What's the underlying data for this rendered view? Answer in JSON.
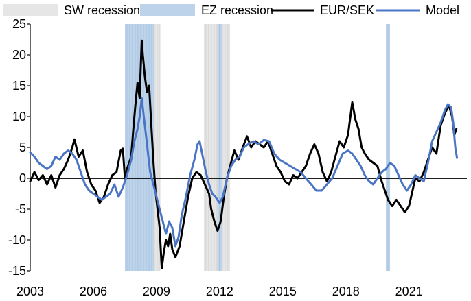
{
  "chart_data": {
    "type": "line",
    "title": "",
    "xlabel": "",
    "ylabel": "",
    "xlim": [
      2003.0,
      2023.75
    ],
    "ylim": [
      -15,
      25
    ],
    "y_ticks": [
      -15,
      -10,
      -5,
      0,
      5,
      10,
      15,
      20,
      25
    ],
    "x_ticks": [
      {
        "value": 2003.0,
        "label": "2003"
      },
      {
        "value": 2006.0,
        "label": "2006"
      },
      {
        "value": 2009.0,
        "label": "2009"
      },
      {
        "value": 2012.0,
        "label": "2012"
      },
      {
        "value": 2015.0,
        "label": "2015"
      },
      {
        "value": 2018.0,
        "label": "2018"
      },
      {
        "value": 2021.0,
        "label": "2021"
      }
    ],
    "grid": false,
    "legend_position": "top",
    "legend": [
      {
        "key": "sw",
        "label": "SW recession",
        "kind": "patch",
        "color": "#e6e6e6"
      },
      {
        "key": "ez",
        "label": "EZ recession",
        "kind": "patch",
        "color": "#bcd3ea"
      },
      {
        "key": "eursek",
        "label": "EUR/SEK",
        "kind": "line",
        "color": "#000000"
      },
      {
        "key": "model",
        "label": "Model",
        "kind": "line",
        "color": "#4a75c4"
      }
    ],
    "shaded_periods": [
      {
        "type": "sw",
        "start": 2007.5,
        "end": 2009.17
      },
      {
        "type": "ez",
        "start": 2007.5,
        "end": 2008.9
      },
      {
        "type": "sw",
        "start": 2011.25,
        "end": 2012.5
      },
      {
        "type": "ez",
        "start": 2011.9,
        "end": 2012.1
      },
      {
        "type": "ez",
        "start": 2019.9,
        "end": 2020.1
      }
    ],
    "series": [
      {
        "name": "EUR/SEK",
        "key": "eursek",
        "color": "#000000",
        "points": [
          [
            2003.0,
            -0.5
          ],
          [
            2003.2,
            1.0
          ],
          [
            2003.4,
            -0.3
          ],
          [
            2003.6,
            0.5
          ],
          [
            2003.8,
            -1.0
          ],
          [
            2004.0,
            0.5
          ],
          [
            2004.2,
            -1.5
          ],
          [
            2004.4,
            0.5
          ],
          [
            2004.6,
            1.5
          ],
          [
            2004.8,
            3.0
          ],
          [
            2005.0,
            5.0
          ],
          [
            2005.1,
            6.3
          ],
          [
            2005.3,
            3.5
          ],
          [
            2005.5,
            4.5
          ],
          [
            2005.7,
            1.0
          ],
          [
            2005.9,
            -1.0
          ],
          [
            2006.1,
            -2.0
          ],
          [
            2006.3,
            -4.0
          ],
          [
            2006.5,
            -3.0
          ],
          [
            2006.7,
            -1.0
          ],
          [
            2006.9,
            0.5
          ],
          [
            2007.1,
            1.0
          ],
          [
            2007.3,
            4.5
          ],
          [
            2007.4,
            4.8
          ],
          [
            2007.5,
            0.0
          ],
          [
            2007.6,
            1.5
          ],
          [
            2007.7,
            2.5
          ],
          [
            2007.8,
            3.5
          ],
          [
            2007.9,
            8.0
          ],
          [
            2008.0,
            12.0
          ],
          [
            2008.1,
            15.5
          ],
          [
            2008.2,
            13.0
          ],
          [
            2008.3,
            22.3
          ],
          [
            2008.35,
            20.0
          ],
          [
            2008.45,
            16.5
          ],
          [
            2008.55,
            14.0
          ],
          [
            2008.65,
            15.0
          ],
          [
            2008.75,
            9.0
          ],
          [
            2008.85,
            3.0
          ],
          [
            2008.95,
            -2.0
          ],
          [
            2009.05,
            -5.0
          ],
          [
            2009.15,
            -8.0
          ],
          [
            2009.25,
            -14.6
          ],
          [
            2009.35,
            -12.0
          ],
          [
            2009.45,
            -10.0
          ],
          [
            2009.55,
            -11.0
          ],
          [
            2009.65,
            -9.0
          ],
          [
            2009.75,
            -11.5
          ],
          [
            2009.9,
            -12.8
          ],
          [
            2010.1,
            -11.0
          ],
          [
            2010.3,
            -7.0
          ],
          [
            2010.5,
            -3.0
          ],
          [
            2010.7,
            0.0
          ],
          [
            2010.9,
            1.0
          ],
          [
            2011.1,
            0.5
          ],
          [
            2011.3,
            -1.0
          ],
          [
            2011.5,
            -2.5
          ],
          [
            2011.6,
            -5.0
          ],
          [
            2011.75,
            -7.0
          ],
          [
            2011.9,
            -8.5
          ],
          [
            2012.05,
            -7.0
          ],
          [
            2012.2,
            -3.0
          ],
          [
            2012.35,
            0.0
          ],
          [
            2012.5,
            2.0
          ],
          [
            2012.7,
            4.5
          ],
          [
            2012.9,
            3.0
          ],
          [
            2013.1,
            5.0
          ],
          [
            2013.3,
            6.8
          ],
          [
            2013.5,
            5.0
          ],
          [
            2013.7,
            6.0
          ],
          [
            2013.9,
            5.5
          ],
          [
            2014.1,
            5.0
          ],
          [
            2014.3,
            6.0
          ],
          [
            2014.5,
            4.0
          ],
          [
            2014.7,
            2.0
          ],
          [
            2014.9,
            1.0
          ],
          [
            2015.1,
            -0.5
          ],
          [
            2015.3,
            -1.0
          ],
          [
            2015.5,
            0.5
          ],
          [
            2015.7,
            0.0
          ],
          [
            2015.9,
            1.0
          ],
          [
            2016.1,
            2.0
          ],
          [
            2016.3,
            4.0
          ],
          [
            2016.5,
            5.5
          ],
          [
            2016.7,
            4.0
          ],
          [
            2016.9,
            1.0
          ],
          [
            2017.1,
            -0.5
          ],
          [
            2017.3,
            1.0
          ],
          [
            2017.5,
            3.5
          ],
          [
            2017.7,
            6.0
          ],
          [
            2017.9,
            5.0
          ],
          [
            2018.1,
            7.0
          ],
          [
            2018.3,
            12.3
          ],
          [
            2018.45,
            9.5
          ],
          [
            2018.6,
            8.0
          ],
          [
            2018.75,
            5.0
          ],
          [
            2018.9,
            4.0
          ],
          [
            2019.1,
            3.0
          ],
          [
            2019.3,
            2.5
          ],
          [
            2019.5,
            2.0
          ],
          [
            2019.7,
            -0.5
          ],
          [
            2019.85,
            -2.0
          ],
          [
            2020.0,
            -3.5
          ],
          [
            2020.2,
            -4.5
          ],
          [
            2020.4,
            -3.5
          ],
          [
            2020.6,
            -4.5
          ],
          [
            2020.8,
            -5.5
          ],
          [
            2021.0,
            -4.5
          ],
          [
            2021.1,
            -3.0
          ],
          [
            2021.3,
            0.0
          ],
          [
            2021.5,
            -0.5
          ],
          [
            2021.7,
            1.0
          ],
          [
            2021.9,
            3.0
          ],
          [
            2022.1,
            5.0
          ],
          [
            2022.3,
            4.0
          ],
          [
            2022.5,
            8.5
          ],
          [
            2022.7,
            10.5
          ],
          [
            2022.9,
            11.8
          ],
          [
            2023.05,
            10.0
          ],
          [
            2023.15,
            7.0
          ],
          [
            2023.25,
            8.0
          ]
        ]
      },
      {
        "name": "Model",
        "key": "model",
        "color": "#4a75c4",
        "points": [
          [
            2003.0,
            4.2
          ],
          [
            2003.2,
            3.5
          ],
          [
            2003.4,
            2.5
          ],
          [
            2003.6,
            2.0
          ],
          [
            2003.8,
            1.5
          ],
          [
            2004.0,
            2.0
          ],
          [
            2004.2,
            3.5
          ],
          [
            2004.4,
            3.0
          ],
          [
            2004.6,
            4.0
          ],
          [
            2004.8,
            4.5
          ],
          [
            2005.0,
            4.0
          ],
          [
            2005.2,
            3.0
          ],
          [
            2005.4,
            1.0
          ],
          [
            2005.6,
            -1.0
          ],
          [
            2005.8,
            -2.0
          ],
          [
            2006.0,
            -2.5
          ],
          [
            2006.2,
            -3.0
          ],
          [
            2006.4,
            -3.5
          ],
          [
            2006.6,
            -3.0
          ],
          [
            2006.8,
            -2.5
          ],
          [
            2007.0,
            -1.0
          ],
          [
            2007.2,
            -3.0
          ],
          [
            2007.4,
            -1.5
          ],
          [
            2007.6,
            0.5
          ],
          [
            2007.8,
            3.0
          ],
          [
            2007.95,
            6.0
          ],
          [
            2008.1,
            8.0
          ],
          [
            2008.2,
            10.0
          ],
          [
            2008.3,
            13.0
          ],
          [
            2008.4,
            10.0
          ],
          [
            2008.5,
            7.0
          ],
          [
            2008.6,
            4.0
          ],
          [
            2008.7,
            1.0
          ],
          [
            2008.85,
            -1.0
          ],
          [
            2009.0,
            -3.0
          ],
          [
            2009.15,
            -5.0
          ],
          [
            2009.3,
            -7.0
          ],
          [
            2009.45,
            -9.0
          ],
          [
            2009.6,
            -7.0
          ],
          [
            2009.75,
            -8.0
          ],
          [
            2009.9,
            -11.0
          ],
          [
            2010.05,
            -9.5
          ],
          [
            2010.2,
            -6.0
          ],
          [
            2010.4,
            -3.0
          ],
          [
            2010.6,
            0.5
          ],
          [
            2010.8,
            3.0
          ],
          [
            2010.95,
            5.5
          ],
          [
            2011.05,
            6.0
          ],
          [
            2011.2,
            3.5
          ],
          [
            2011.35,
            1.0
          ],
          [
            2011.5,
            -1.0
          ],
          [
            2011.65,
            -2.5
          ],
          [
            2011.8,
            -3.0
          ],
          [
            2012.0,
            -4.0
          ],
          [
            2012.15,
            -3.0
          ],
          [
            2012.35,
            0.0
          ],
          [
            2012.55,
            2.0
          ],
          [
            2012.75,
            3.0
          ],
          [
            2012.95,
            3.5
          ],
          [
            2013.15,
            5.0
          ],
          [
            2013.35,
            5.5
          ],
          [
            2013.6,
            6.0
          ],
          [
            2013.85,
            5.5
          ],
          [
            2014.1,
            6.2
          ],
          [
            2014.35,
            6.0
          ],
          [
            2014.6,
            4.0
          ],
          [
            2014.85,
            3.0
          ],
          [
            2015.1,
            2.5
          ],
          [
            2015.35,
            2.0
          ],
          [
            2015.6,
            1.5
          ],
          [
            2015.85,
            1.0
          ],
          [
            2016.1,
            0.0
          ],
          [
            2016.35,
            -1.0
          ],
          [
            2016.6,
            -2.0
          ],
          [
            2016.85,
            -2.0
          ],
          [
            2017.1,
            -1.0
          ],
          [
            2017.35,
            0.0
          ],
          [
            2017.6,
            2.0
          ],
          [
            2017.85,
            4.0
          ],
          [
            2018.1,
            4.5
          ],
          [
            2018.3,
            4.0
          ],
          [
            2018.5,
            3.0
          ],
          [
            2018.7,
            2.0
          ],
          [
            2018.9,
            0.5
          ],
          [
            2019.1,
            -0.5
          ],
          [
            2019.3,
            -1.0
          ],
          [
            2019.5,
            0.0
          ],
          [
            2019.7,
            1.0
          ],
          [
            2019.9,
            1.5
          ],
          [
            2020.1,
            2.5
          ],
          [
            2020.3,
            2.0
          ],
          [
            2020.5,
            0.5
          ],
          [
            2020.7,
            -1.0
          ],
          [
            2020.9,
            -2.0
          ],
          [
            2021.1,
            -1.0
          ],
          [
            2021.3,
            0.5
          ],
          [
            2021.5,
            0.0
          ],
          [
            2021.7,
            -0.5
          ],
          [
            2021.9,
            2.5
          ],
          [
            2022.1,
            6.0
          ],
          [
            2022.3,
            7.5
          ],
          [
            2022.5,
            9.0
          ],
          [
            2022.7,
            11.0
          ],
          [
            2022.85,
            12.0
          ],
          [
            2023.0,
            11.5
          ],
          [
            2023.1,
            9.0
          ],
          [
            2023.2,
            5.0
          ],
          [
            2023.28,
            3.3
          ]
        ]
      }
    ]
  }
}
